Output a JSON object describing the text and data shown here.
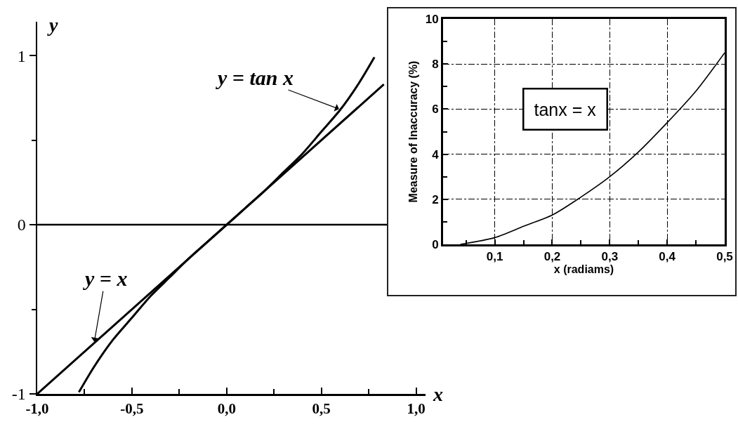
{
  "chart_data": [
    {
      "type": "line",
      "xlabel": "x",
      "ylabel": "y",
      "series": [
        {
          "name": "y = x",
          "color": "#000000",
          "x": [
            -1,
            0,
            0.83
          ],
          "values": [
            -1,
            0,
            0.83
          ]
        },
        {
          "name": "y = tan x",
          "color": "#000000",
          "x": [
            -0.78,
            -0.7,
            -0.6,
            -0.5,
            -0.4,
            -0.3,
            -0.2,
            -0.1,
            0,
            0.1,
            0.2,
            0.3,
            0.4,
            0.5,
            0.6,
            0.7,
            0.78
          ],
          "values": [
            -0.99,
            -0.84,
            -0.68,
            -0.55,
            -0.42,
            -0.31,
            -0.2,
            -0.1,
            0,
            0.1,
            0.2,
            0.31,
            0.42,
            0.55,
            0.68,
            0.84,
            0.99
          ]
        }
      ],
      "xlim": [
        -1,
        1.05
      ],
      "ylim": [
        -1,
        1.2
      ],
      "xticks": [
        {
          "value": -1,
          "label": "-1,0"
        },
        {
          "value": -0.75,
          "label": null
        },
        {
          "value": -0.5,
          "label": "-0,5"
        },
        {
          "value": -0.25,
          "label": null
        },
        {
          "value": 0,
          "label": "0,0"
        },
        {
          "value": 0.25,
          "label": null
        },
        {
          "value": 0.5,
          "label": "0,5"
        },
        {
          "value": 0.75,
          "label": null
        },
        {
          "value": 1,
          "label": "1,0"
        }
      ],
      "yticks": [
        -1,
        {
          "value": -0.5,
          "label": null
        },
        0,
        {
          "value": 0.5,
          "label": null
        },
        1
      ],
      "ref_lines": [
        {
          "axis": "y",
          "value": 0,
          "color": "#000000"
        }
      ],
      "grid": false,
      "legend": false,
      "marker": "none",
      "line_style": "solid"
    },
    {
      "type": "line",
      "xlabel": "x (radiams)",
      "ylabel": "Measure of Inaccuracy (%)",
      "annotations": [
        "tanx = x"
      ],
      "x": [
        0.04,
        0.1,
        0.15,
        0.2,
        0.25,
        0.3,
        0.35,
        0.4,
        0.45,
        0.5
      ],
      "series": [
        {
          "color": "#000000",
          "values": [
            0.0,
            0.3,
            0.8,
            1.3,
            2.1,
            3.0,
            4.1,
            5.4,
            6.8,
            8.5
          ]
        }
      ],
      "xlim": [
        0.01,
        0.5
      ],
      "ylim": [
        0,
        10
      ],
      "xticks": [
        {
          "value": 0.05,
          "label": null
        },
        {
          "value": 0.1,
          "label": "0,1"
        },
        {
          "value": 0.15,
          "label": null
        },
        {
          "value": 0.2,
          "label": "0,2"
        },
        {
          "value": 0.25,
          "label": null
        },
        {
          "value": 0.3,
          "label": "0,3"
        },
        {
          "value": 0.35,
          "label": null
        },
        {
          "value": 0.4,
          "label": "0,4"
        },
        {
          "value": 0.45,
          "label": null
        },
        {
          "value": 0.5,
          "label": "0,5"
        }
      ],
      "yticks": [
        0,
        {
          "value": 1,
          "label": null
        },
        2,
        {
          "value": 3,
          "label": null
        },
        4,
        {
          "value": 5,
          "label": null
        },
        6,
        {
          "value": 7,
          "label": null
        },
        8,
        {
          "value": 9,
          "label": null
        },
        10
      ],
      "grid": true,
      "legend": false,
      "marker": "none",
      "line_style": "solid"
    }
  ]
}
